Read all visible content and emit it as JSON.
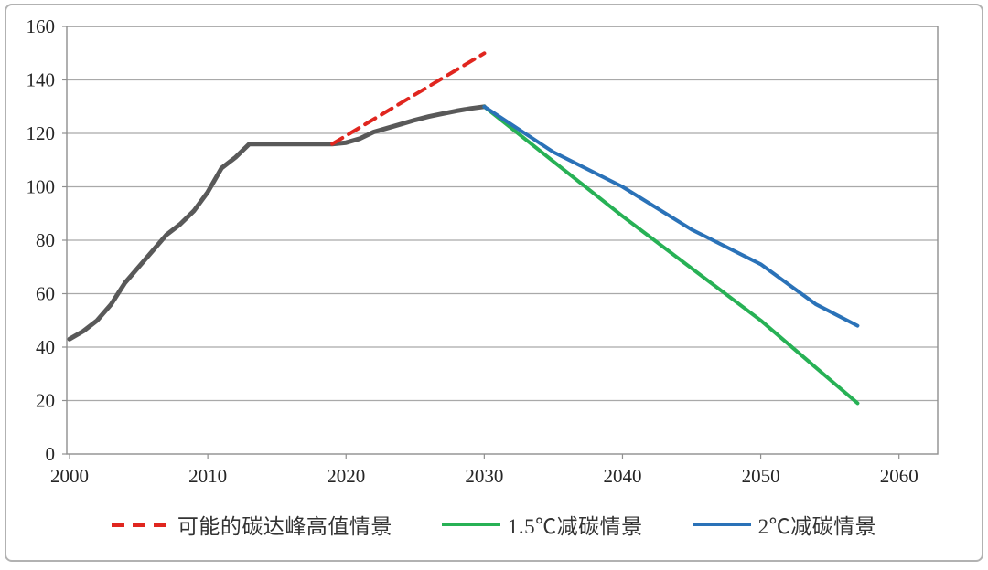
{
  "chart_data": {
    "type": "line",
    "title": "",
    "xlabel": "",
    "ylabel": "",
    "x_ticks": [
      2000,
      2010,
      2020,
      2030,
      2040,
      2050,
      2060
    ],
    "y_ticks": [
      0,
      20,
      40,
      60,
      80,
      100,
      120,
      140,
      160
    ],
    "xlim": [
      1999.8,
      2062.8
    ],
    "ylim": [
      0,
      160
    ],
    "grid": "horizontal",
    "legend_position": "bottom",
    "colors": {
      "grid": "#a9a9a9",
      "plot_border": "#8f8f8f",
      "axis_text": "#262626",
      "legend_text": "#333333",
      "background": "#ffffff"
    },
    "series": [
      {
        "id": "historical-emissions",
        "label": "",
        "color": "#595959",
        "width": 5,
        "dash": null,
        "x": [
          2000,
          2001,
          2002,
          2003,
          2004,
          2005,
          2006,
          2007,
          2008,
          2009,
          2010,
          2011,
          2012,
          2013,
          2014,
          2015,
          2016,
          2017,
          2018,
          2019,
          2020,
          2021,
          2022,
          2023,
          2024,
          2025,
          2026,
          2027,
          2028,
          2029,
          2030
        ],
        "y": [
          43,
          46,
          50,
          56,
          64,
          70,
          76,
          82,
          86,
          91,
          98,
          107,
          111,
          116,
          116,
          116,
          116,
          116,
          116,
          116,
          116.5,
          118,
          120.5,
          122,
          123.5,
          125,
          126.3,
          127.4,
          128.4,
          129.3,
          130
        ]
      },
      {
        "id": "possible-peak-high-scenario",
        "label": "可能的碳达峰高值情景",
        "color": "#e0261f",
        "width": 4,
        "dash": "13 8",
        "x": [
          2019,
          2030
        ],
        "y": [
          116,
          150
        ]
      },
      {
        "id": "scenario-1-5c",
        "label": "1.5℃减碳情景",
        "color": "#27b155",
        "width": 4,
        "dash": null,
        "x": [
          2030,
          2040,
          2050,
          2057
        ],
        "y": [
          130,
          89,
          50,
          19
        ]
      },
      {
        "id": "scenario-2c",
        "label": "2℃减碳情景",
        "color": "#2a72b8",
        "width": 4,
        "dash": null,
        "x": [
          2030,
          2035,
          2040,
          2045,
          2050,
          2054,
          2057
        ],
        "y": [
          130,
          113,
          100,
          84,
          71,
          56,
          48
        ]
      }
    ]
  }
}
